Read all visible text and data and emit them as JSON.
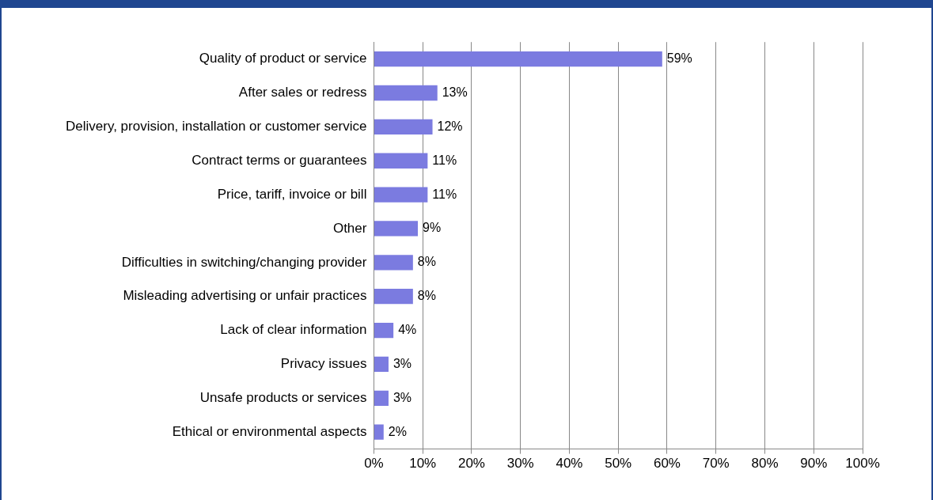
{
  "chart_data": {
    "type": "bar",
    "orientation": "horizontal",
    "categories": [
      "Quality of product or service",
      "After sales or redress",
      "Delivery, provision, installation or customer service",
      "Contract terms or guarantees",
      "Price, tariff, invoice or bill",
      "Other",
      "Difficulties in switching/changing provider",
      "Misleading advertising or unfair practices",
      "Lack of clear information",
      "Privacy issues",
      "Unsafe products or services",
      "Ethical or environmental aspects"
    ],
    "values": [
      59,
      13,
      12,
      11,
      11,
      9,
      8,
      8,
      4,
      3,
      3,
      2
    ],
    "color": "#7b7be0",
    "value_labels": [
      "59%",
      "13%",
      "12%",
      "11%",
      "11%",
      "9%",
      "8%",
      "8%",
      "4%",
      "3%",
      "3%",
      "2%"
    ],
    "xlim": [
      0,
      100
    ],
    "xticks": [
      {
        "value": 0,
        "label": "0%"
      },
      {
        "value": 10,
        "label": "10%"
      },
      {
        "value": 20,
        "label": "20%"
      },
      {
        "value": 30,
        "label": "30%"
      },
      {
        "value": 40,
        "label": "40%"
      },
      {
        "value": 50,
        "label": "50%"
      },
      {
        "value": 60,
        "label": "60%"
      },
      {
        "value": 70,
        "label": "70%"
      },
      {
        "value": 80,
        "label": "80%"
      },
      {
        "value": 90,
        "label": "90%"
      },
      {
        "value": 100,
        "label": "100%"
      }
    ],
    "grid": "x",
    "legend": false
  }
}
